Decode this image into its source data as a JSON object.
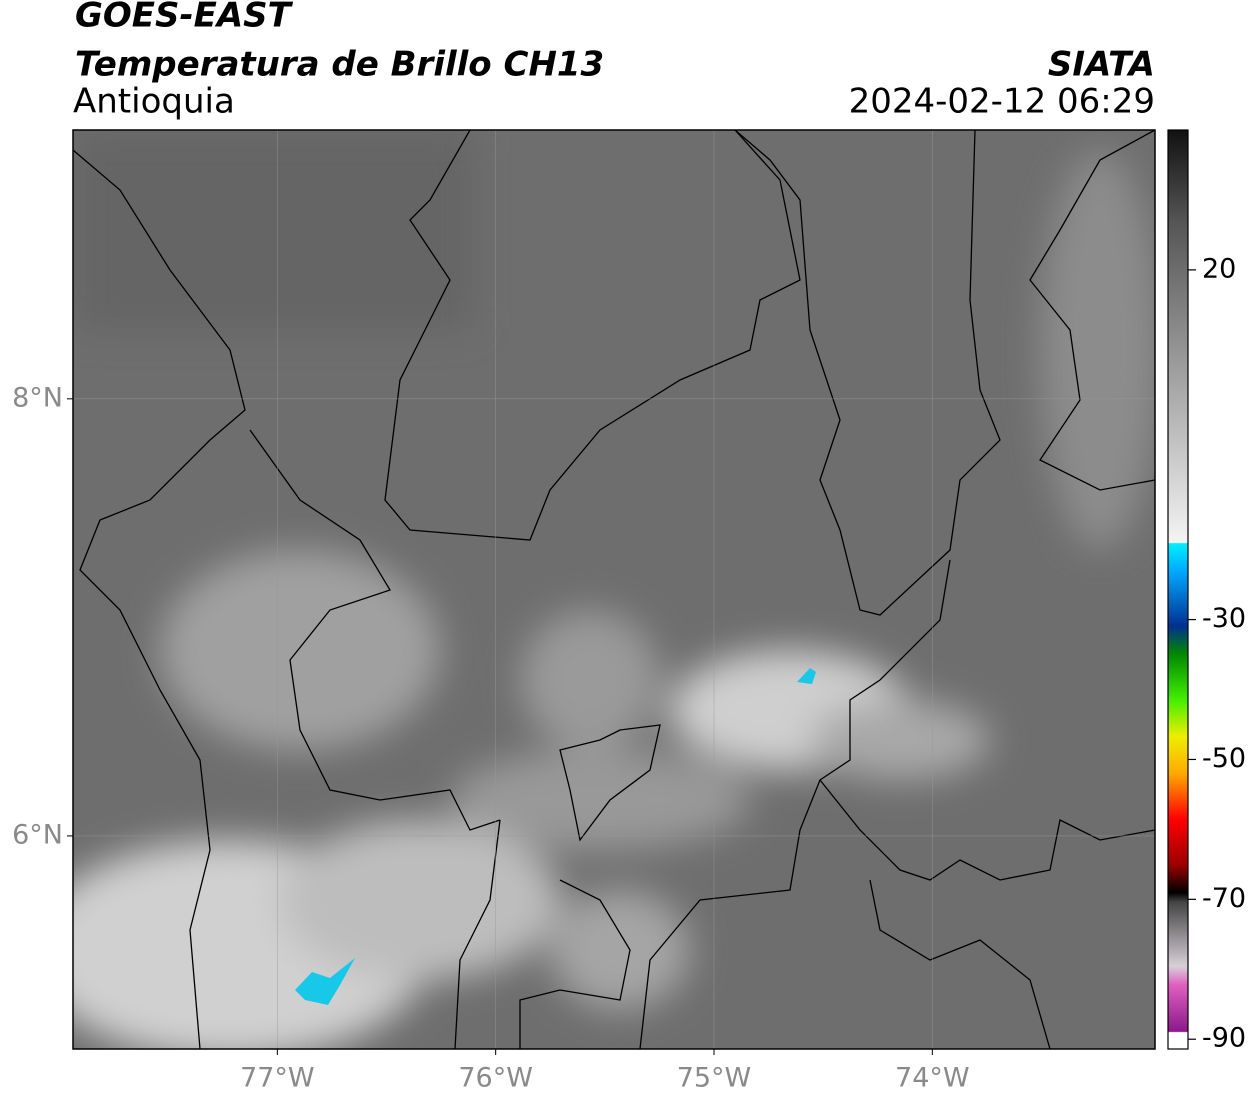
{
  "header": {
    "title": "GOES-EAST",
    "subtitle": "Temperatura de Brillo CH13",
    "region": "Antioquia",
    "source": "SIATA",
    "datetime": "2024-02-12 06:29"
  },
  "map": {
    "xlim": [
      -77.936,
      -72.98
    ],
    "ylim": [
      5.025,
      9.23
    ],
    "xticks": [
      {
        "value": -77,
        "label": "77°W"
      },
      {
        "value": -76,
        "label": "76°W"
      },
      {
        "value": -75,
        "label": "75°W"
      },
      {
        "value": -74,
        "label": "74°W"
      }
    ],
    "yticks": [
      {
        "value": 6,
        "label": "6°N"
      },
      {
        "value": 8,
        "label": "8°N"
      }
    ],
    "grid": true
  },
  "colorbar": {
    "clim": [
      -91.4,
      40
    ],
    "ticks": [
      20,
      -30,
      -50,
      -70,
      -90
    ]
  }
}
